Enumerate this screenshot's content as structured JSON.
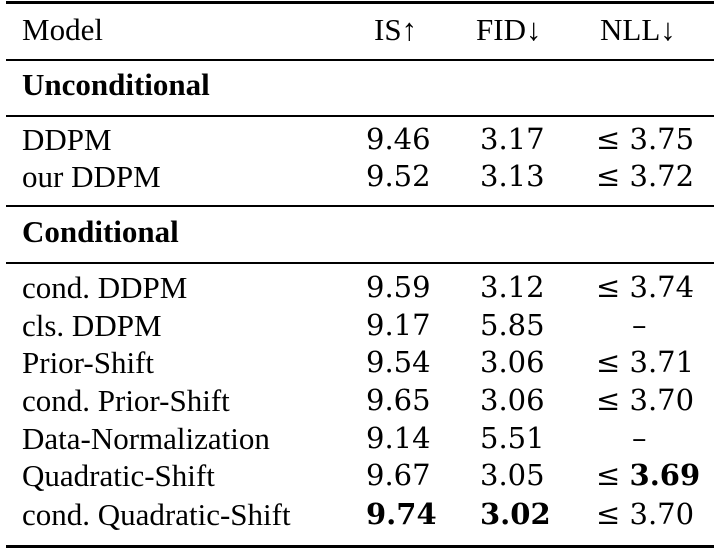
{
  "table": {
    "headers": [
      "Model",
      "IS↑",
      "FID↓",
      "NLL↓"
    ],
    "sections": [
      {
        "title": "Unconditional",
        "rows": [
          {
            "model": "DDPM",
            "is": "9.46",
            "fid": "3.17",
            "nll": "≤ 3.75"
          },
          {
            "model": "our DDPM",
            "is": "9.52",
            "fid": "3.13",
            "nll": "≤ 3.72"
          }
        ]
      },
      {
        "title": "Conditional",
        "rows": [
          {
            "model": "cond. DDPM",
            "is": "9.59",
            "fid": "3.12",
            "nll": "≤ 3.74"
          },
          {
            "model": "cls. DDPM",
            "is": "9.17",
            "fid": "5.85",
            "nll": "–"
          },
          {
            "model": "Prior-Shift",
            "is": "9.54",
            "fid": "3.06",
            "nll": "≤ 3.71"
          },
          {
            "model": "cond. Prior-Shift",
            "is": "9.65",
            "fid": "3.06",
            "nll": "≤ 3.70"
          },
          {
            "model": "Data-Normalization",
            "is": "9.14",
            "fid": "5.51",
            "nll": "–"
          },
          {
            "model": "Quadratic-Shift",
            "is": "9.67",
            "fid": "3.05",
            "nll_prefix": "≤",
            "nll_value": "3.69"
          },
          {
            "model": "cond. Quadratic-Shift",
            "is": "9.74",
            "fid": "3.02",
            "nll": "≤ 3.70"
          }
        ]
      }
    ]
  }
}
